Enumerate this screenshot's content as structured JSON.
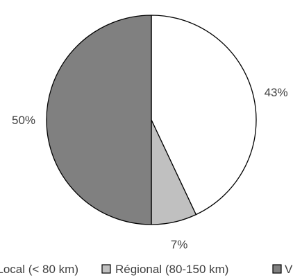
{
  "chart_data": {
    "type": "pie",
    "title": "",
    "legend_position": "bottom",
    "slices": [
      {
        "label": "Local (< 80 km)",
        "value": 43,
        "display": "43%",
        "color": "#ffffff"
      },
      {
        "label": "Régional (80-150 km)",
        "value": 7,
        "display": "7%",
        "color": "#c0c0c0"
      },
      {
        "label": "V",
        "value": 50,
        "display": "50%",
        "color": "#808080"
      }
    ]
  }
}
